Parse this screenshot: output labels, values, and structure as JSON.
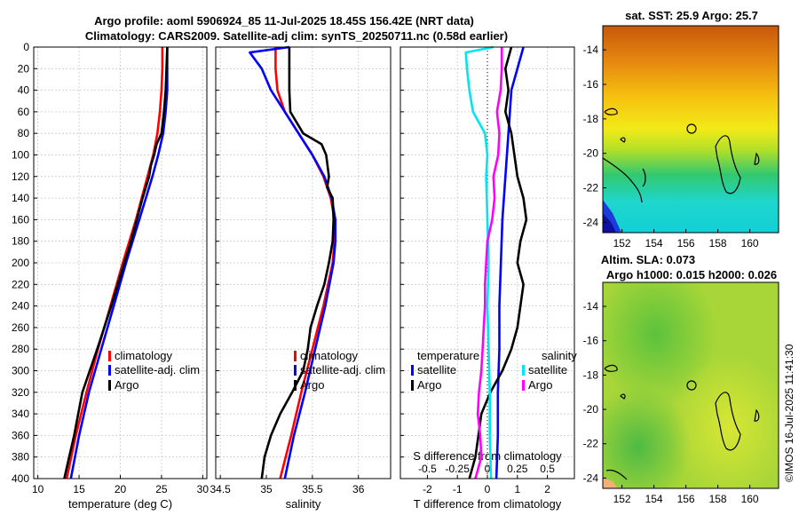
{
  "title": {
    "line1": "Argo profile: aoml 5906924_85 11-Jul-2025 18.45S 156.42E (NRT data)",
    "line2": "Climatology: CARS2009. Satellite-adj clim: synTS_20250711.nc (0.58d earlier)"
  },
  "colors": {
    "climatology": "#ff0000",
    "satellite": "#0000ff",
    "argo": "#000000",
    "sat_salinity": "#00e5ee",
    "argo_salinity": "#ff00ff"
  },
  "chart_data": [
    {
      "type": "line",
      "name": "temperature-panel",
      "xlabel": "temperature (deg C)",
      "ylabel": "",
      "xlim": [
        9.5,
        30.5
      ],
      "ylim": [
        400,
        0
      ],
      "xticks": [
        "10",
        "15",
        "20",
        "25",
        "30"
      ],
      "xtick_values": [
        10,
        15,
        20,
        25,
        30
      ],
      "yticks": [
        0,
        20,
        40,
        60,
        80,
        100,
        120,
        140,
        160,
        180,
        200,
        220,
        240,
        260,
        280,
        300,
        320,
        340,
        360,
        380,
        400
      ],
      "grid": true,
      "legend": [
        "climatology",
        "satellite-adj. clim",
        "Argo"
      ],
      "series": [
        {
          "name": "climatology",
          "depth": [
            0,
            20,
            40,
            60,
            80,
            100,
            120,
            140,
            160,
            180,
            200,
            240,
            280,
            320,
            360,
            400
          ],
          "values": [
            25.1,
            25.1,
            25.0,
            24.8,
            24.5,
            24.0,
            23.3,
            22.6,
            21.9,
            21.1,
            20.3,
            18.8,
            17.3,
            15.9,
            14.6,
            13.5
          ]
        },
        {
          "name": "satellite-adj. clim",
          "depth": [
            0,
            20,
            40,
            60,
            80,
            100,
            120,
            140,
            160,
            180,
            200,
            240,
            280,
            320,
            360,
            400
          ],
          "values": [
            25.7,
            25.7,
            25.7,
            25.5,
            25.2,
            24.6,
            23.9,
            23.1,
            22.3,
            21.5,
            20.7,
            19.2,
            17.7,
            16.2,
            15.0,
            14.0
          ]
        },
        {
          "name": "Argo",
          "depth": [
            0,
            20,
            40,
            60,
            80,
            90,
            100,
            110,
            120,
            140,
            160,
            180,
            200,
            240,
            280,
            300,
            320,
            340,
            360,
            380,
            400
          ],
          "values": [
            25.7,
            25.6,
            25.5,
            25.3,
            25.0,
            24.4,
            24.1,
            23.7,
            23.5,
            22.7,
            22.0,
            21.3,
            20.5,
            18.9,
            17.2,
            16.3,
            15.4,
            14.9,
            14.4,
            13.8,
            13.2
          ]
        }
      ]
    },
    {
      "type": "line",
      "name": "salinity-panel",
      "xlabel": "salinity",
      "xlim": [
        34.45,
        36.35
      ],
      "ylim": [
        400,
        0
      ],
      "xticks": [
        "34.5",
        "35",
        "35.5",
        "36"
      ],
      "xtick_values": [
        34.5,
        35.0,
        35.5,
        36.0
      ],
      "grid": true,
      "legend": [
        "climatology",
        "satellite-adj. clim",
        "Argo"
      ],
      "series": [
        {
          "name": "climatology",
          "depth": [
            0,
            20,
            40,
            60,
            80,
            100,
            120,
            140,
            160,
            180,
            200,
            240,
            280,
            320,
            360,
            400
          ],
          "values": [
            35.1,
            35.1,
            35.12,
            35.2,
            35.35,
            35.5,
            35.62,
            35.7,
            35.74,
            35.74,
            35.72,
            35.62,
            35.5,
            35.38,
            35.27,
            35.15
          ]
        },
        {
          "name": "satellite-adj. clim",
          "depth": [
            0,
            5,
            20,
            40,
            60,
            80,
            100,
            120,
            140,
            160,
            180,
            200,
            240,
            280,
            320,
            360,
            400
          ],
          "values": [
            35.25,
            34.82,
            34.95,
            35.05,
            35.2,
            35.35,
            35.5,
            35.63,
            35.71,
            35.75,
            35.75,
            35.73,
            35.64,
            35.53,
            35.42,
            35.3,
            35.2
          ]
        },
        {
          "name": "Argo",
          "depth": [
            0,
            20,
            40,
            60,
            80,
            90,
            100,
            120,
            130,
            140,
            160,
            180,
            200,
            220,
            240,
            260,
            280,
            300,
            320,
            340,
            360,
            380,
            400
          ],
          "values": [
            35.25,
            35.25,
            35.25,
            35.26,
            35.4,
            35.6,
            35.65,
            35.68,
            35.66,
            35.72,
            35.73,
            35.72,
            35.68,
            35.63,
            35.55,
            35.48,
            35.45,
            35.4,
            35.28,
            35.15,
            35.05,
            34.98,
            34.95
          ]
        }
      ]
    },
    {
      "type": "line",
      "name": "difference-panel",
      "xlabel": "T difference from climatology",
      "xlabel2": "S difference from climatology",
      "xlim": [
        -2.9,
        2.9
      ],
      "ylim": [
        400,
        0
      ],
      "xticks": [
        "-2",
        "-1",
        "0",
        "1",
        "2"
      ],
      "xtick_values": [
        -2,
        -1,
        0,
        1,
        2
      ],
      "xticks2": [
        "-0.5",
        "-0.25",
        "0",
        "0.25",
        "0.5"
      ],
      "xtick2_values": [
        -0.5,
        -0.25,
        0,
        0.25,
        0.5
      ],
      "grid": true,
      "legend_temperature": {
        "header": "temperature",
        "items": [
          "satellite",
          "Argo"
        ]
      },
      "legend_salinity": {
        "header": "salinity",
        "items": [
          "satellite",
          "Argo"
        ]
      },
      "series": [
        {
          "name": "T satellite",
          "depth": [
            0,
            10,
            40,
            80,
            120,
            160,
            200,
            240,
            280,
            320,
            360,
            400
          ],
          "values": [
            1.2,
            1.1,
            0.8,
            0.7,
            0.6,
            0.5,
            0.45,
            0.4,
            0.4,
            0.35,
            0.35,
            0.3
          ]
        },
        {
          "name": "T Argo",
          "depth": [
            0,
            20,
            40,
            60,
            80,
            100,
            120,
            140,
            160,
            180,
            200,
            220,
            240,
            260,
            280,
            300,
            320,
            340,
            360,
            380,
            400
          ],
          "values": [
            0.8,
            0.6,
            0.7,
            0.6,
            0.8,
            0.9,
            1.0,
            1.2,
            1.3,
            1.1,
            1.0,
            1.2,
            1.1,
            1.0,
            0.8,
            0.5,
            0.1,
            -0.2,
            -0.3,
            -0.4,
            -0.6
          ]
        },
        {
          "name": "S satellite",
          "depth": [
            0,
            5,
            20,
            40,
            60,
            80,
            100,
            120,
            160,
            200,
            240,
            280,
            320,
            360,
            400
          ],
          "values": [
            0.05,
            -0.18,
            -0.17,
            -0.15,
            -0.12,
            -0.02,
            0.0,
            -0.01,
            0.0,
            0.01,
            0.0,
            0.01,
            0.02,
            0.02,
            0.03
          ]
        },
        {
          "name": "S Argo",
          "depth": [
            0,
            20,
            40,
            60,
            80,
            100,
            120,
            140,
            160,
            180,
            200,
            220,
            240,
            260,
            280,
            300,
            320,
            340,
            360,
            380,
            400
          ],
          "values": [
            0.12,
            0.12,
            0.11,
            0.08,
            0.1,
            0.09,
            0.05,
            0.06,
            0.04,
            0.0,
            -0.01,
            -0.02,
            -0.02,
            -0.03,
            -0.04,
            -0.05,
            -0.07,
            -0.08,
            -0.06,
            -0.05,
            -0.1
          ]
        }
      ]
    },
    {
      "type": "heatmap",
      "name": "sst-map",
      "title": "sat. SST: 25.9 Argo: 25.7",
      "xticks": [
        "152",
        "154",
        "156",
        "158",
        "160"
      ],
      "xtick_values": [
        152,
        154,
        156,
        158,
        160
      ],
      "yticks": [
        "-14",
        "-16",
        "-18",
        "-20",
        "-22",
        "-24"
      ],
      "ytick_values": [
        -14,
        -16,
        -18,
        -20,
        -22,
        -24
      ],
      "xlim": [
        150.8,
        161.8
      ],
      "ylim": [
        -24.6,
        -12.6
      ],
      "argo_position": {
        "lon": 156.42,
        "lat": -18.45
      }
    },
    {
      "type": "heatmap",
      "name": "sla-map",
      "title": "Altim. SLA: 0.073",
      "subtitle": "Argo h1000: 0.015 h2000: 0.026",
      "xticks": [
        "152",
        "154",
        "156",
        "158",
        "160"
      ],
      "xtick_values": [
        152,
        154,
        156,
        158,
        160
      ],
      "yticks": [
        "-14",
        "-16",
        "-18",
        "-20",
        "-22",
        "-24"
      ],
      "ytick_values": [
        -14,
        -16,
        -18,
        -20,
        -22,
        -24
      ],
      "xlim": [
        150.8,
        161.8
      ],
      "ylim": [
        -24.6,
        -12.6
      ],
      "argo_position": {
        "lon": 156.42,
        "lat": -18.45
      }
    }
  ],
  "footer": {
    "stamp": "©IMOS 16-Jul-2025 11:41:30"
  }
}
